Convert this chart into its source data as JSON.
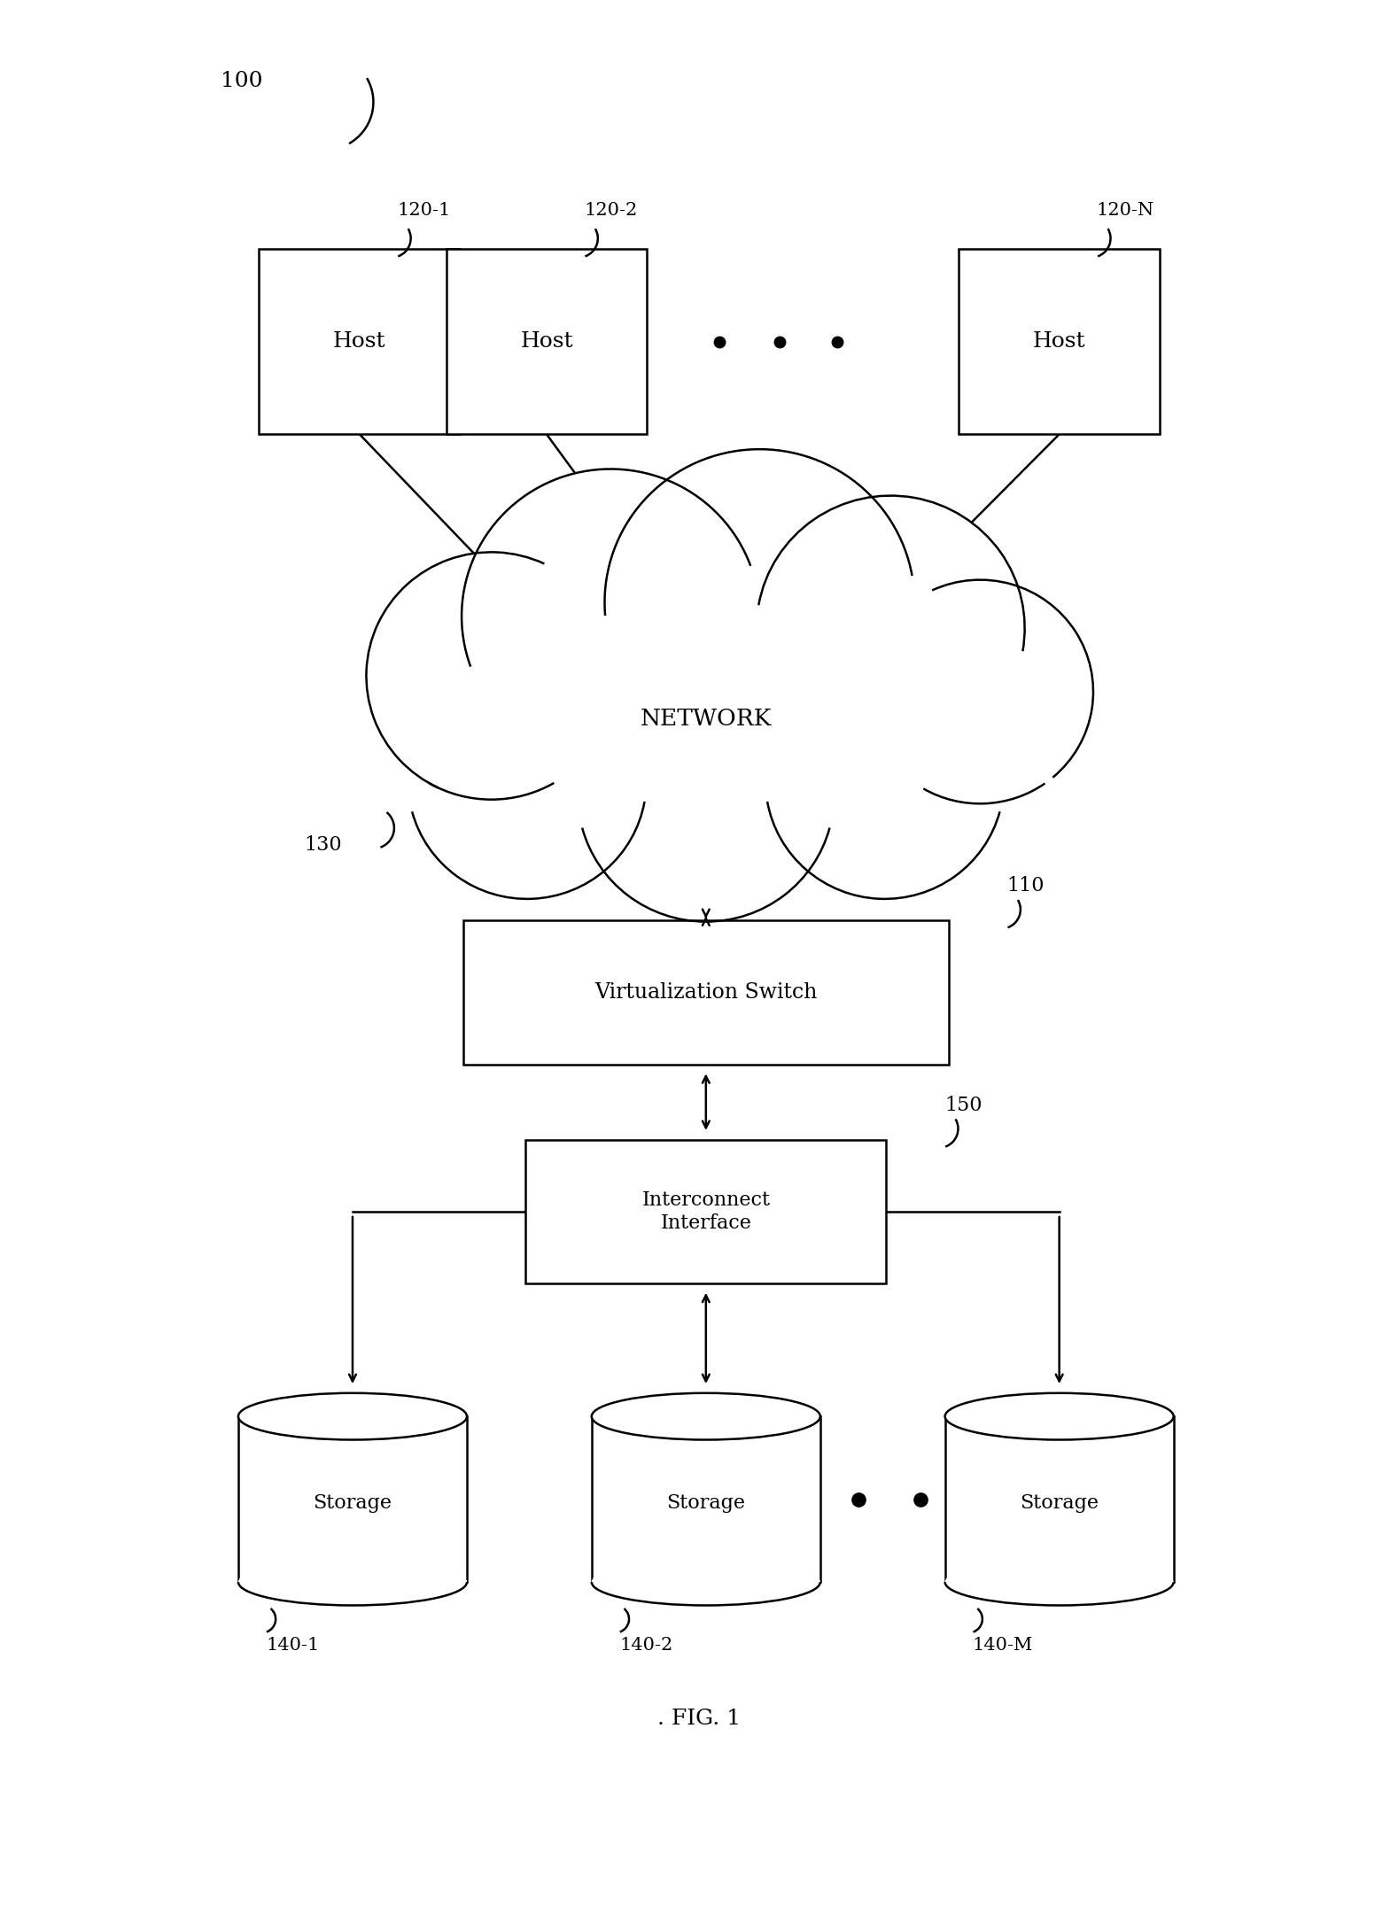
{
  "fig_width": 15.78,
  "fig_height": 21.79,
  "bg_color": "#ffffff",
  "label_100": "100",
  "label_130": "130",
  "label_110": "110",
  "label_150": "150",
  "host_labels": [
    "120-1",
    "120-2",
    "120-N"
  ],
  "storage_labels": [
    "140-1",
    "140-2",
    "140-M"
  ],
  "host_text": "Host",
  "network_text": "NETWORK",
  "vswitch_text": "Virtualization Switch",
  "interconnect_text": "Interconnect\nInterface",
  "storage_text": "Storage",
  "fig_caption": ". FIG. 1",
  "line_color": "#000000",
  "bg_color2": "#ffffff",
  "font_size_box": 18,
  "font_size_ref": 16,
  "font_size_caption": 18,
  "lw": 1.8
}
